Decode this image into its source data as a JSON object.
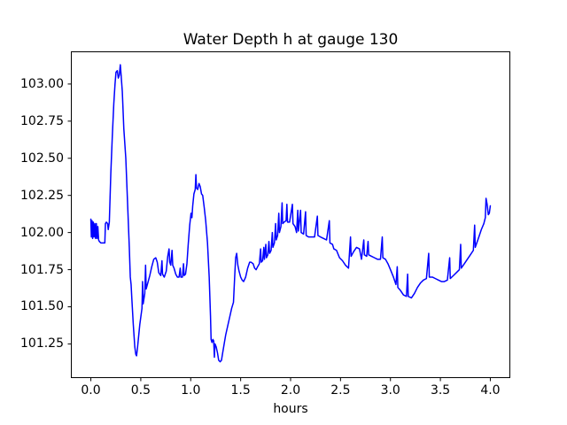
{
  "figure": {
    "background_color": "#ffffff",
    "text_color": "#000000",
    "spine_color": "#000000"
  },
  "chart_data": {
    "type": "line",
    "title": "Water Depth h at gauge 130",
    "xlabel": "hours",
    "ylabel": "",
    "grid": false,
    "legend": null,
    "xlim": [
      -0.2,
      4.2
    ],
    "ylim": [
      101.02,
      103.22
    ],
    "xticks": {
      "values": [
        0.0,
        0.5,
        1.0,
        1.5,
        2.0,
        2.5,
        3.0,
        3.5,
        4.0
      ],
      "labels": [
        "0.0",
        "0.5",
        "1.0",
        "1.5",
        "2.0",
        "2.5",
        "3.0",
        "3.5",
        "4.0"
      ]
    },
    "yticks": {
      "values": [
        101.25,
        101.5,
        101.75,
        102.0,
        102.25,
        102.5,
        102.75,
        103.0
      ],
      "labels": [
        "101.25",
        "101.50",
        "101.75",
        "102.00",
        "102.25",
        "102.50",
        "102.75",
        "103.00"
      ]
    },
    "series": [
      {
        "name": "water depth h at gauge 130",
        "color": "#0000ff",
        "line_width": 1.5,
        "x": [
          0.0,
          0.005,
          0.012,
          0.018,
          0.025,
          0.032,
          0.04,
          0.047,
          0.055,
          0.062,
          0.07,
          0.078,
          0.085,
          0.1,
          0.14,
          0.146,
          0.155,
          0.168,
          0.174,
          0.185,
          0.2,
          0.215,
          0.23,
          0.242,
          0.252,
          0.265,
          0.275,
          0.285,
          0.295,
          0.303,
          0.315,
          0.33,
          0.35,
          0.37,
          0.385,
          0.395,
          0.403,
          0.41,
          0.425,
          0.44,
          0.45,
          0.458,
          0.468,
          0.49,
          0.512,
          0.518,
          0.524,
          0.54,
          0.548,
          0.554,
          0.57,
          0.59,
          0.61,
          0.63,
          0.65,
          0.665,
          0.68,
          0.7,
          0.712,
          0.718,
          0.735,
          0.755,
          0.77,
          0.783,
          0.79,
          0.8,
          0.813,
          0.82,
          0.833,
          0.85,
          0.867,
          0.883,
          0.895,
          0.901,
          0.917,
          0.928,
          0.934,
          0.948,
          0.962,
          0.975,
          0.99,
          1.003,
          1.012,
          1.02,
          1.032,
          1.045,
          1.052,
          1.058,
          1.07,
          1.083,
          1.095,
          1.108,
          1.12,
          1.135,
          1.15,
          1.168,
          1.185,
          1.198,
          1.204,
          1.213,
          1.222,
          1.23,
          1.237,
          1.243,
          1.255,
          1.268,
          1.28,
          1.295,
          1.308,
          1.32,
          1.335,
          1.35,
          1.37,
          1.39,
          1.41,
          1.428,
          1.44,
          1.45,
          1.46,
          1.472,
          1.484,
          1.5,
          1.515,
          1.53,
          1.55,
          1.57,
          1.59,
          1.605,
          1.625,
          1.64,
          1.655,
          1.67,
          1.687,
          1.7,
          1.706,
          1.72,
          1.732,
          1.738,
          1.752,
          1.758,
          1.772,
          1.783,
          1.79,
          1.805,
          1.817,
          1.823,
          1.838,
          1.85,
          1.856,
          1.87,
          1.882,
          1.888,
          1.903,
          1.915,
          1.921,
          1.935,
          1.955,
          1.963,
          1.969,
          1.99,
          2.018,
          2.024,
          2.045,
          2.06,
          2.072,
          2.078,
          2.1,
          2.106,
          2.13,
          2.15,
          2.156,
          2.18,
          2.21,
          2.24,
          2.268,
          2.274,
          2.3,
          2.33,
          2.36,
          2.388,
          2.394,
          2.42,
          2.433,
          2.46,
          2.49,
          2.52,
          2.55,
          2.58,
          2.6,
          2.606,
          2.63,
          2.66,
          2.69,
          2.71,
          2.733,
          2.739,
          2.762,
          2.776,
          2.782,
          2.81,
          2.84,
          2.87,
          2.9,
          2.918,
          2.924,
          2.95,
          2.975,
          3.0,
          3.03,
          3.055,
          3.068,
          3.074,
          3.1,
          3.13,
          3.16,
          3.172,
          3.178,
          3.21,
          3.24,
          3.27,
          3.3,
          3.33,
          3.36,
          3.383,
          3.389,
          3.42,
          3.45,
          3.48,
          3.51,
          3.54,
          3.57,
          3.593,
          3.599,
          3.63,
          3.66,
          3.69,
          3.703,
          3.709,
          3.74,
          3.77,
          3.8,
          3.83,
          3.843,
          3.849,
          3.88,
          3.91,
          3.935,
          3.95,
          3.957,
          3.968,
          3.98,
          3.99,
          4.0
        ],
        "y": [
          102.09,
          101.97,
          102.08,
          101.96,
          102.07,
          101.97,
          102.06,
          101.96,
          102.06,
          101.96,
          102.04,
          101.95,
          101.94,
          101.93,
          101.93,
          102.06,
          102.07,
          102.06,
          102.02,
          102.07,
          102.4,
          102.65,
          102.87,
          103.0,
          103.08,
          103.09,
          103.04,
          103.06,
          103.13,
          103.06,
          102.95,
          102.7,
          102.5,
          102.16,
          101.9,
          101.7,
          101.65,
          101.56,
          101.38,
          101.23,
          101.18,
          101.17,
          101.23,
          101.38,
          101.49,
          101.67,
          101.52,
          101.59,
          101.78,
          101.62,
          101.66,
          101.71,
          101.77,
          101.82,
          101.83,
          101.8,
          101.73,
          101.71,
          101.81,
          101.72,
          101.7,
          101.74,
          101.84,
          101.89,
          101.8,
          101.78,
          101.88,
          101.78,
          101.76,
          101.72,
          101.7,
          101.7,
          101.76,
          101.7,
          101.7,
          101.79,
          101.71,
          101.72,
          101.79,
          101.92,
          102.05,
          102.13,
          102.1,
          102.18,
          102.26,
          102.29,
          102.39,
          102.3,
          102.29,
          102.33,
          102.31,
          102.26,
          102.25,
          102.17,
          102.08,
          101.93,
          101.7,
          101.44,
          101.28,
          101.26,
          101.28,
          101.27,
          101.16,
          101.25,
          101.23,
          101.19,
          101.14,
          101.13,
          101.14,
          101.19,
          101.25,
          101.31,
          101.37,
          101.43,
          101.49,
          101.53,
          101.7,
          101.83,
          101.86,
          101.78,
          101.74,
          101.7,
          101.68,
          101.67,
          101.7,
          101.76,
          101.8,
          101.8,
          101.79,
          101.76,
          101.75,
          101.77,
          101.79,
          101.89,
          101.8,
          101.81,
          101.9,
          101.82,
          101.92,
          101.83,
          101.85,
          101.94,
          101.86,
          101.88,
          102.0,
          101.9,
          101.93,
          102.06,
          101.95,
          101.98,
          102.13,
          102.0,
          102.04,
          102.2,
          102.06,
          102.07,
          102.08,
          102.19,
          102.07,
          102.07,
          102.19,
          102.06,
          102.04,
          102.0,
          102.15,
          102.01,
          102.15,
          102.0,
          101.99,
          102.14,
          101.98,
          101.97,
          101.97,
          101.97,
          102.11,
          101.98,
          101.97,
          101.96,
          101.95,
          102.08,
          101.93,
          101.92,
          101.89,
          101.88,
          101.83,
          101.81,
          101.78,
          101.76,
          101.97,
          101.84,
          101.87,
          101.9,
          101.89,
          101.82,
          101.95,
          101.85,
          101.84,
          101.94,
          101.85,
          101.84,
          101.83,
          101.82,
          101.82,
          101.97,
          101.83,
          101.82,
          101.79,
          101.75,
          101.7,
          101.65,
          101.77,
          101.63,
          101.61,
          101.58,
          101.57,
          101.72,
          101.57,
          101.56,
          101.59,
          101.63,
          101.66,
          101.68,
          101.69,
          101.86,
          101.7,
          101.7,
          101.69,
          101.68,
          101.67,
          101.67,
          101.68,
          101.83,
          101.69,
          101.71,
          101.73,
          101.75,
          101.92,
          101.76,
          101.79,
          101.82,
          101.85,
          101.88,
          102.05,
          101.9,
          101.96,
          102.02,
          102.06,
          102.1,
          102.23,
          102.19,
          102.12,
          102.13,
          102.18
        ]
      }
    ]
  }
}
